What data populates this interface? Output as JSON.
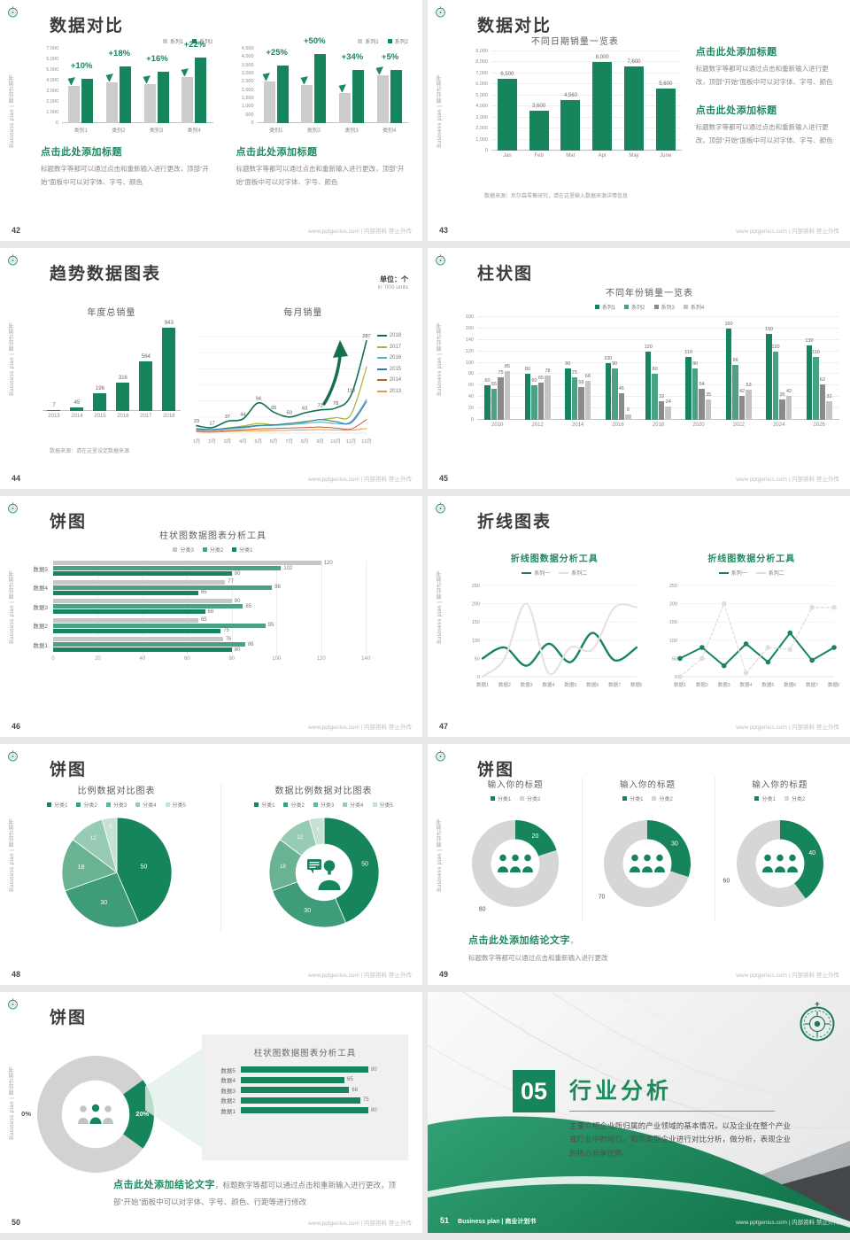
{
  "common": {
    "footer": "www.pptgenius.com | 内部资料 禁止外传",
    "sidebar": "Business plan | 商业计划书",
    "logo": "green-seal-emblem"
  },
  "colors": {
    "green": "#17855B",
    "green_mid": "#4AA183",
    "gray_bar": "#CCCCCC",
    "gray_dark": "#8A8A8A",
    "gray_light": "#C4C4C4",
    "heading_green": "#1E8A5F",
    "pie": [
      "#17855B",
      "#3E9C78",
      "#69B292",
      "#98CBB3",
      "#C7E2D5"
    ],
    "donut_gray": "#D6D6D6",
    "line_years": [
      "#17704E",
      "#A2B73B",
      "#55B3CC",
      "#2E7E9E",
      "#C05A33",
      "#E69A3D"
    ],
    "line_gray": "#E3E3E3",
    "slide_dark": "#43474A"
  },
  "slides": {
    "s42": {
      "page": "42",
      "title": "数据对比",
      "heading": "点击此处添加标题",
      "body": "标题数字等都可以通过点击和重新输入进行更改，顶部“开始”面板中可以对字体、字号、颜色"
    },
    "s43": {
      "page": "43",
      "title": "数据对比",
      "heading": "点击此处添加标题",
      "body": "标题数字等都可以通过点击和重新输入进行更改，顶部“开始”面板中可以对字体、字号、颜色",
      "source": "数据来源：尼尔森零售研究，请在这里输入数据来源详情信息"
    },
    "s44": {
      "page": "44",
      "title": "趋势数据图表",
      "unit1": "单位：个",
      "unit2": "in '000 units",
      "source": "数据来源：请在这里设定数据来源"
    },
    "s45": {
      "page": "45",
      "title": "柱状图"
    },
    "s46": {
      "page": "46",
      "title": "饼图"
    },
    "s47": {
      "page": "47",
      "title": "折线图表"
    },
    "s48": {
      "page": "48",
      "title": "饼图"
    },
    "s49": {
      "page": "49",
      "title": "饼图",
      "concl_heading": "点击此处添加结论文字",
      "comma": "，",
      "concl_body": "标题数字等都可以通过点击和重新输入进行更改"
    },
    "s50": {
      "page": "50",
      "title": "饼图",
      "concl_heading": "点击此处添加结论文字",
      "concl_body": "，标题数字等都可以通过点击和重新输入进行更改，顶部“开始”面板中可以对字体、字号、颜色、行距等进行修改"
    },
    "s51": {
      "page": "51",
      "number": "05",
      "title": "行业分析",
      "body": "主要介绍企业所归属的产业领域的基本情况，以及企业在整个产业或行业中的地位。和同类型企业进行对比分析，做分析，表现企业的核心竞争优势。",
      "footer_label": "Business plan | 商业计划书"
    }
  },
  "chart_data": [
    {
      "id": "42L",
      "type": "bar",
      "slide": 42,
      "legend": [
        "系列1",
        "系列2"
      ],
      "categories": [
        "类别1",
        "类别2",
        "类别3",
        "类别4"
      ],
      "series": [
        {
          "name": "系列1",
          "values": [
            3500,
            3800,
            3700,
            4300
          ]
        },
        {
          "name": "系列2",
          "values": [
            4200,
            5300,
            4800,
            6200
          ]
        }
      ],
      "growth_labels": [
        "+10%",
        "+18%",
        "+16%",
        "+22%"
      ],
      "ylim": [
        0,
        7000
      ],
      "ystep": 1000
    },
    {
      "id": "42R",
      "type": "bar",
      "slide": 42,
      "legend": [
        "系列1",
        "系列2"
      ],
      "categories": [
        "类别1",
        "类别2",
        "类别3",
        "类别4"
      ],
      "series": [
        {
          "name": "系列1",
          "values": [
            2500,
            2300,
            1800,
            2900
          ]
        },
        {
          "name": "系列2",
          "values": [
            3500,
            4200,
            3200,
            3200
          ]
        }
      ],
      "growth_labels": [
        "+25%",
        "+50%",
        "+34%",
        "+5%"
      ],
      "ylim": [
        0,
        4500
      ],
      "ystep": 500
    },
    {
      "id": "43",
      "type": "bar",
      "slide": 43,
      "title": "不同日期销量一览表",
      "categories": [
        "Jan",
        "Feb",
        "Mar",
        "Apr",
        "May",
        "June"
      ],
      "values": [
        6500,
        3600,
        4560,
        8000,
        7600,
        5600
      ],
      "value_labels": [
        "6,500",
        "3,600",
        "4,560",
        "8,000",
        "7,600",
        "5,600"
      ],
      "ylim": [
        0,
        9000
      ],
      "ystep": 1000
    },
    {
      "id": "44L",
      "type": "bar",
      "slide": 44,
      "title": "年度总销量",
      "categories": [
        "2013",
        "2014",
        "2015",
        "2016",
        "2017",
        "2018"
      ],
      "values": [
        7,
        45,
        196,
        316,
        564,
        943
      ],
      "ylim": [
        0,
        1000
      ]
    },
    {
      "id": "44R",
      "type": "line",
      "slide": 44,
      "title": "每月销量",
      "categories": [
        "1月",
        "2月",
        "3月",
        "4月",
        "5月",
        "6月",
        "7月",
        "8月",
        "9月",
        "10月",
        "11月",
        "12月"
      ],
      "series": [
        {
          "name": "2018",
          "values": [
            23,
            17,
            37,
            44,
            94,
            65,
            50,
            63,
            72,
            78,
            118,
            287
          ]
        },
        {
          "name": "2017",
          "values": [
            12,
            10,
            16,
            22,
            30,
            26,
            30,
            36,
            42,
            48,
            58,
            205
          ]
        },
        {
          "name": "2016",
          "values": [
            10,
            9,
            13,
            16,
            22,
            24,
            26,
            30,
            34,
            30,
            36,
            105
          ]
        },
        {
          "name": "2015",
          "values": [
            14,
            11,
            15,
            19,
            24,
            26,
            30,
            34,
            42,
            36,
            32,
            98
          ]
        },
        {
          "name": "2014",
          "values": [
            6,
            5,
            8,
            10,
            13,
            14,
            16,
            17,
            19,
            16,
            13,
            42
          ]
        },
        {
          "name": "2013",
          "values": [
            4,
            3,
            5,
            6,
            7,
            8,
            9,
            10,
            11,
            10,
            9,
            14
          ]
        }
      ],
      "ylim": [
        0,
        300
      ]
    },
    {
      "id": "45",
      "type": "bar",
      "slide": 45,
      "title": "不同年份销量一览表",
      "legend": [
        "系列1",
        "系列2",
        "系列3",
        "系列4"
      ],
      "categories": [
        "2010",
        "2012",
        "2014",
        "2016",
        "2018",
        "2020",
        "2022",
        "2024",
        "2026"
      ],
      "series": [
        {
          "name": "系列1",
          "values": [
            60,
            80,
            90,
            100,
            120,
            110,
            160,
            150,
            130
          ]
        },
        {
          "name": "系列2",
          "values": [
            55,
            60,
            75,
            90,
            80,
            90,
            96,
            120,
            110
          ]
        },
        {
          "name": "系列3",
          "values": [
            75,
            65,
            58,
            46,
            32,
            54,
            42,
            35,
            62
          ]
        },
        {
          "name": "系列4",
          "values": [
            85,
            78,
            68,
            9,
            24,
            35,
            53,
            42,
            32
          ]
        }
      ],
      "ylim": [
        0,
        180
      ],
      "ystep": 20
    },
    {
      "id": "46",
      "type": "hbar",
      "slide": 46,
      "title": "柱状图数据图表分析工具",
      "legend": [
        "分类3",
        "分类2",
        "分类1"
      ],
      "rows": [
        {
          "label": "数据5",
          "values": [
            120,
            102,
            80
          ]
        },
        {
          "label": "数据4",
          "values": [
            77,
            98,
            65
          ]
        },
        {
          "label": "数据3",
          "values": [
            80,
            85,
            68
          ]
        },
        {
          "label": "数据2",
          "values": [
            65,
            95,
            75
          ]
        },
        {
          "label": "数据1",
          "values": [
            76,
            86,
            80
          ]
        }
      ],
      "xlim": [
        0,
        140
      ],
      "xticks": [
        0,
        20,
        40,
        60,
        80,
        100,
        120,
        140
      ]
    },
    {
      "id": "47L",
      "type": "line",
      "slide": 47,
      "title": "折线图数据分析工具",
      "legend": [
        "系列一",
        "系列二"
      ],
      "categories": [
        "数据1",
        "数据2",
        "数据3",
        "数据4",
        "数据5",
        "数据6",
        "数据7",
        "数据8"
      ],
      "series": [
        {
          "name": "系列一",
          "values": [
            50,
            80,
            30,
            90,
            40,
            120,
            45,
            80
          ]
        },
        {
          "name": "系列二",
          "values": [
            0,
            50,
            200,
            10,
            80,
            75,
            190,
            190
          ]
        }
      ],
      "ylim": [
        0,
        250
      ],
      "ystep": 50
    },
    {
      "id": "47R",
      "type": "line",
      "slide": 47,
      "title": "折线图数据分析工具",
      "legend": [
        "系列一",
        "系列二"
      ],
      "categories": [
        "数据1",
        "数据2",
        "数据3",
        "数据4",
        "数据5",
        "数据6",
        "数据7",
        "数据8"
      ],
      "series": [
        {
          "name": "系列一",
          "values": [
            50,
            80,
            30,
            90,
            40,
            120,
            45,
            80
          ]
        },
        {
          "name": "系列二",
          "values": [
            0,
            50,
            200,
            10,
            80,
            75,
            190,
            190
          ]
        }
      ],
      "ylim": [
        0,
        250
      ],
      "ystep": 50
    },
    {
      "id": "48L",
      "type": "pie",
      "slide": 48,
      "title": "比例数据对比图表",
      "legend": [
        "分类1",
        "分类2",
        "分类3",
        "分类4",
        "分类5"
      ],
      "values": [
        50,
        30,
        18,
        12,
        5
      ]
    },
    {
      "id": "48R",
      "type": "donut",
      "slide": 48,
      "title": "数据比例数据对比图表",
      "legend": [
        "分类1",
        "分类2",
        "分类3",
        "分类4",
        "分类5"
      ],
      "values": [
        50,
        30,
        18,
        12,
        5
      ],
      "center_icon": "person-speech-bubble"
    },
    {
      "id": "49A",
      "type": "donut",
      "slide": 49,
      "title": "输入你的标题",
      "legend": [
        "分类1",
        "分类2"
      ],
      "values": [
        20,
        80
      ],
      "center_icon": "people-group"
    },
    {
      "id": "49B",
      "type": "donut",
      "slide": 49,
      "title": "输入你的标题",
      "legend": [
        "分类1",
        "分类2"
      ],
      "values": [
        30,
        70
      ],
      "center_icon": "people-group"
    },
    {
      "id": "49C",
      "type": "donut",
      "slide": 49,
      "title": "输入你的标题",
      "legend": [
        "分类1",
        "分类2"
      ],
      "values": [
        40,
        60
      ],
      "center_icon": "people-group"
    },
    {
      "id": "50P",
      "type": "donut",
      "slide": 50,
      "values": [
        20,
        80
      ],
      "value_labels": [
        "20%",
        "80%"
      ],
      "center_icon": "people-group"
    },
    {
      "id": "50B",
      "type": "hbar",
      "slide": 50,
      "title": "柱状图数据图表分析工具",
      "rows": [
        {
          "label": "数据5",
          "values": [
            80
          ]
        },
        {
          "label": "数据4",
          "values": [
            65
          ]
        },
        {
          "label": "数据3",
          "values": [
            68
          ]
        },
        {
          "label": "数据2",
          "values": [
            75
          ]
        },
        {
          "label": "数据1",
          "values": [
            80
          ]
        }
      ],
      "xlim": [
        0,
        90
      ]
    }
  ]
}
